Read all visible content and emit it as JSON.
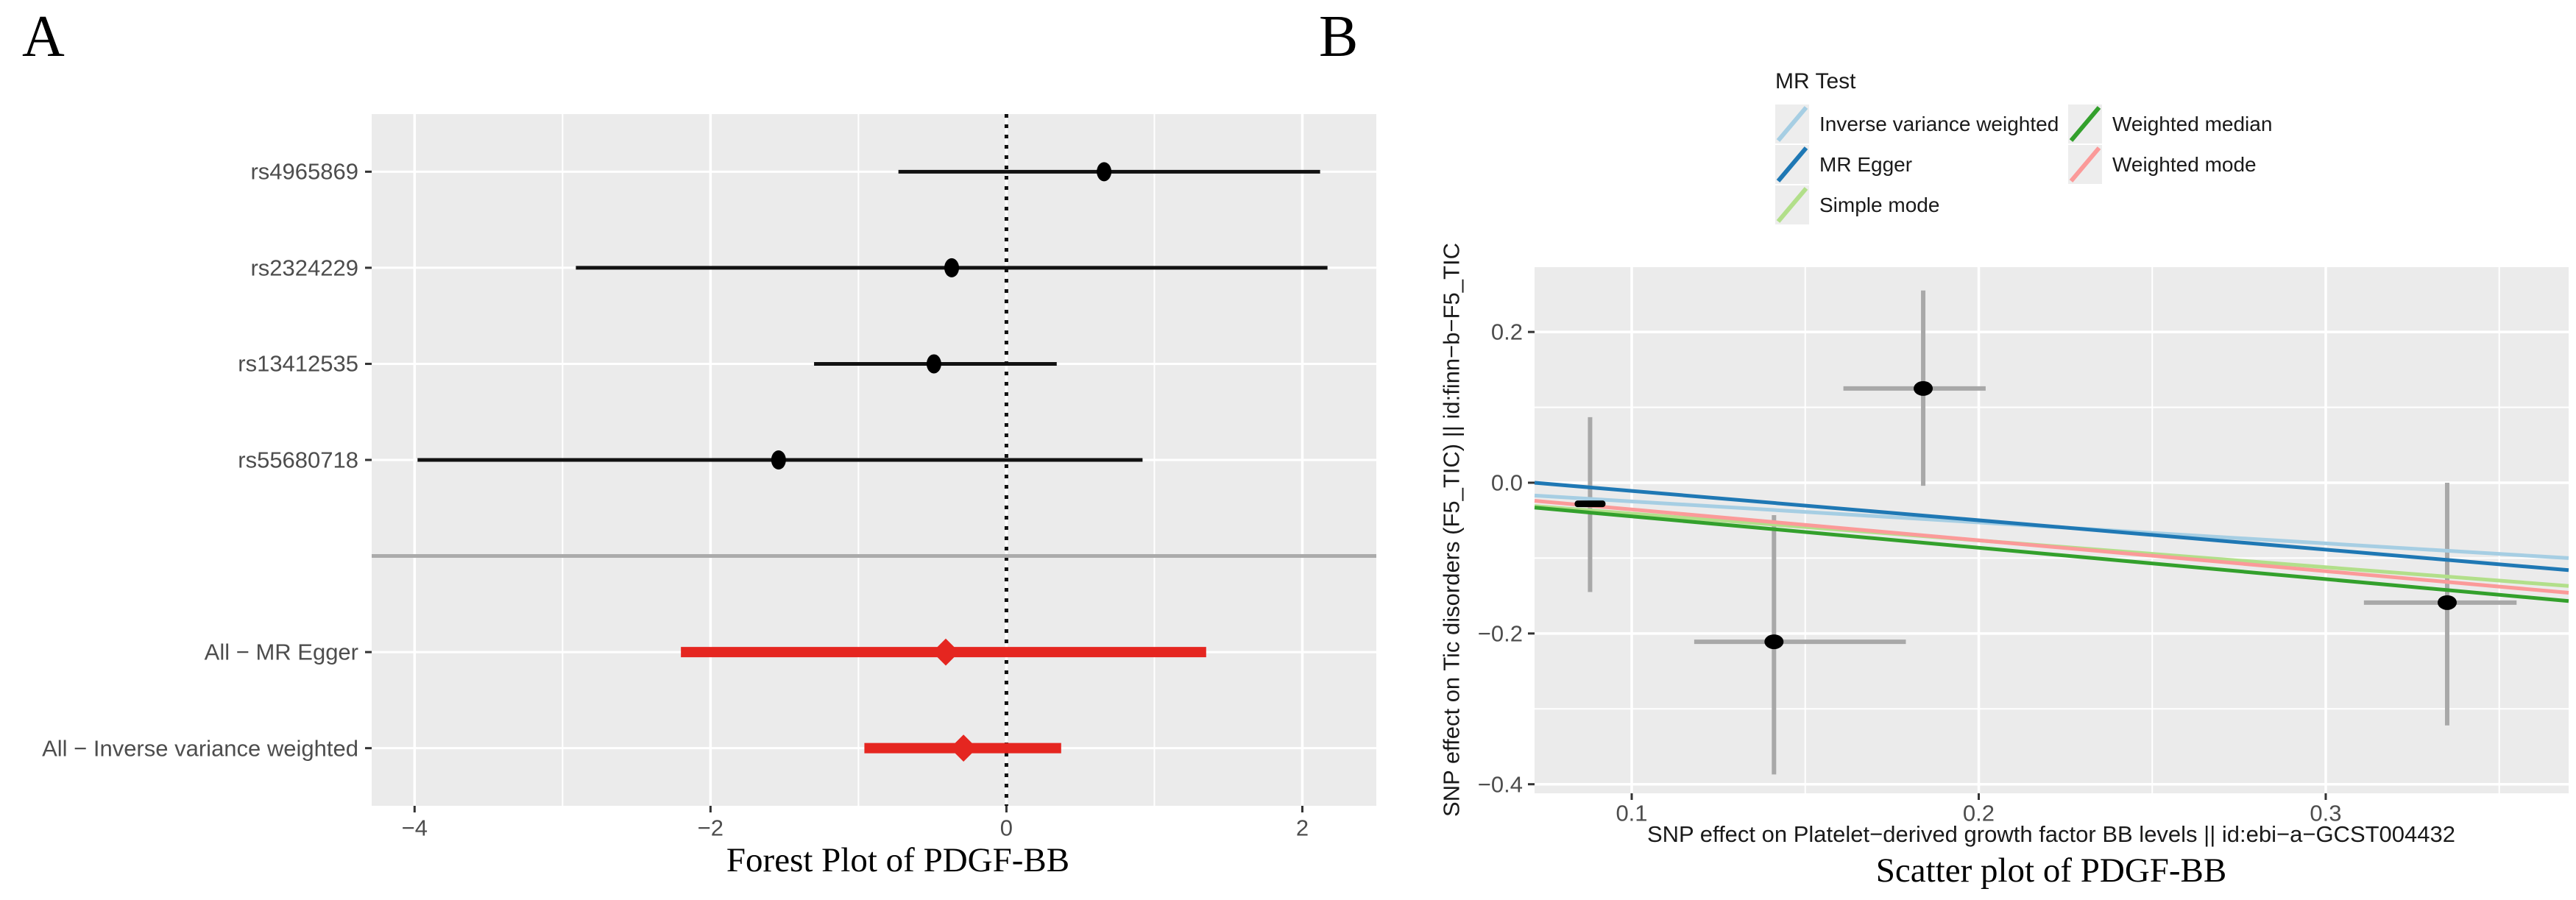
{
  "page": {
    "panel_a_letter": "A",
    "panel_b_letter": "B",
    "background": "#ffffff"
  },
  "colors": {
    "panel_background": "#EBEBEB",
    "grid": "#FFFFFF",
    "tick_mark": "#333333",
    "tick_text": "#4D4D4D",
    "axis_title_text": "#1A1A1A",
    "snp_ci": "#111111",
    "summary_ci": "#E52620",
    "separator": "#ABABAB",
    "error_bar": "#A8A8A8",
    "point": "#000000",
    "legend_key_bg": "#EDEDED"
  },
  "chart_data": [
    {
      "panel": "A",
      "type": "forest",
      "title": "Forest Plot of PDGF-BB",
      "xlim": [
        -4.29,
        2.5
      ],
      "xticks": [
        {
          "v": -4,
          "label": "−4"
        },
        {
          "v": -2,
          "label": "−2"
        },
        {
          "v": 0,
          "label": "0"
        },
        {
          "v": 2,
          "label": "2"
        }
      ],
      "x_minor": [
        -3,
        -1,
        1
      ],
      "zero_line": 0,
      "rows": [
        {
          "kind": "snp",
          "label": "rs4965869",
          "est": 0.66,
          "lo": -0.73,
          "hi": 2.12
        },
        {
          "kind": "snp",
          "label": "rs2324229",
          "est": -0.37,
          "lo": -2.91,
          "hi": 2.17
        },
        {
          "kind": "snp",
          "label": "rs13412535",
          "est": -0.49,
          "lo": -1.3,
          "hi": 0.34
        },
        {
          "kind": "snp",
          "label": "rs55680718",
          "est": -1.54,
          "lo": -3.98,
          "hi": 0.92
        },
        {
          "kind": "separator",
          "label": ""
        },
        {
          "kind": "summary",
          "label": "All − MR Egger",
          "est": -0.41,
          "lo": -2.2,
          "hi": 1.35
        },
        {
          "kind": "summary",
          "label": "All − Inverse variance weighted",
          "est": -0.29,
          "lo": -0.96,
          "hi": 0.37
        }
      ]
    },
    {
      "panel": "B",
      "type": "scatter",
      "title": "Scatter plot of PDGF-BB",
      "xlabel": "SNP effect on Platelet−derived growth factor BB levels || id:ebi−a−GCST004432",
      "ylabel": "SNP effect on Tic disorders (F5_TIC) || id:finn−b−F5_TIC",
      "xlim": [
        0.072,
        0.37
      ],
      "ylim": [
        -0.412,
        0.286
      ],
      "xticks": [
        {
          "v": 0.1,
          "label": "0.1"
        },
        {
          "v": 0.2,
          "label": "0.2"
        },
        {
          "v": 0.3,
          "label": "0.3"
        }
      ],
      "yticks": [
        {
          "v": 0.2,
          "label": "0.2"
        },
        {
          "v": 0.0,
          "label": "0.0"
        },
        {
          "v": -0.2,
          "label": "−0.2"
        },
        {
          "v": -0.4,
          "label": "−0.4"
        }
      ],
      "x_minor": [
        0.15,
        0.25,
        0.35
      ],
      "y_minor": [
        0.1,
        -0.1,
        -0.3
      ],
      "points": [
        {
          "snp": 1,
          "x": 0.088,
          "y": -0.028,
          "y_lo": -0.145,
          "y_hi": 0.087,
          "marker": "dash"
        },
        {
          "snp": 2,
          "x": 0.141,
          "y": -0.211,
          "y_lo": -0.387,
          "y_hi": -0.043,
          "x_lo": 0.118,
          "x_hi": 0.179,
          "marker": "circle"
        },
        {
          "snp": 3,
          "x": 0.184,
          "y": 0.125,
          "y_lo": -0.004,
          "y_hi": 0.255,
          "x_lo": 0.161,
          "x_hi": 0.202,
          "marker": "circle"
        },
        {
          "snp": 4,
          "x": 0.335,
          "y": -0.159,
          "y_lo": -0.322,
          "y_hi": 0.0,
          "x_lo": 0.311,
          "x_hi": 0.355,
          "marker": "circle"
        }
      ],
      "series": [
        {
          "name": "Simple mode",
          "color": "#B2DF8A",
          "y_at_xmin": -0.031,
          "y_at_xmax": -0.137
        },
        {
          "name": "Weighted median",
          "color": "#33A02C",
          "y_at_xmin": -0.033,
          "y_at_xmax": -0.157
        },
        {
          "name": "Weighted mode",
          "color": "#FB9A99",
          "y_at_xmin": -0.024,
          "y_at_xmax": -0.146
        },
        {
          "name": "Inverse variance weighted",
          "color": "#A6CEE3",
          "y_at_xmin": -0.017,
          "y_at_xmax": -0.1
        },
        {
          "name": "MR Egger",
          "color": "#1F78B4",
          "y_at_xmin": 0.0,
          "y_at_xmax": -0.116
        }
      ],
      "legend": {
        "title": "MR Test",
        "items": [
          {
            "label": "Inverse variance weighted",
            "color": "#A6CEE3",
            "col": 0,
            "row": 0
          },
          {
            "label": "MR Egger",
            "color": "#1F78B4",
            "col": 0,
            "row": 1
          },
          {
            "label": "Simple mode",
            "color": "#B2DF8A",
            "col": 0,
            "row": 2
          },
          {
            "label": "Weighted median",
            "color": "#33A02C",
            "col": 1,
            "row": 0
          },
          {
            "label": "Weighted mode",
            "color": "#FB9A99",
            "col": 1,
            "row": 1
          }
        ]
      }
    }
  ]
}
